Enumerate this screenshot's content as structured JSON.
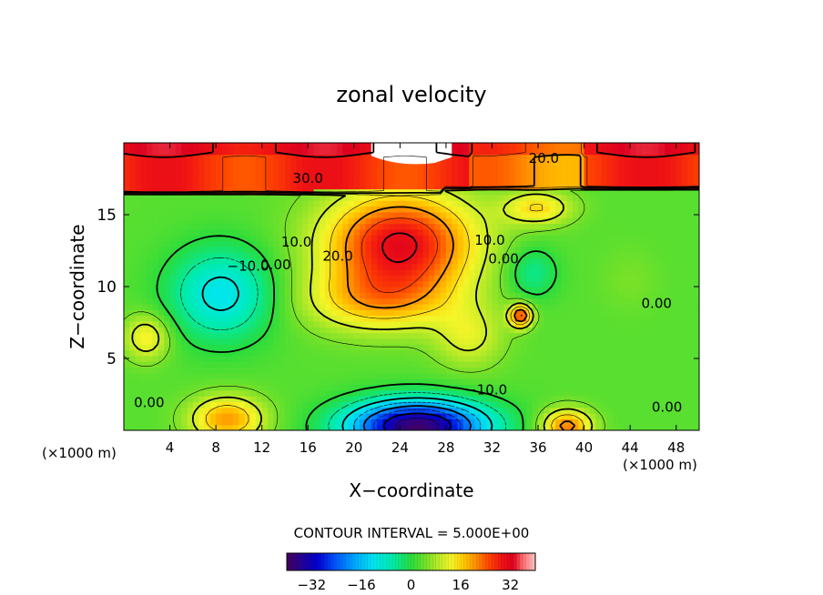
{
  "chart_data": {
    "type": "heatmap",
    "title": "zonal velocity",
    "xlabel": "X−coordinate",
    "ylabel": "Z−coordinate",
    "x_unit_left": "(×1000 m)",
    "x_unit_right": "(×1000 m)",
    "xlim": [
      0,
      50
    ],
    "ylim": [
      0,
      20
    ],
    "x_ticks": [
      4,
      8,
      12,
      16,
      20,
      24,
      28,
      32,
      36,
      40,
      44,
      48
    ],
    "y_ticks": [
      5,
      10,
      15
    ],
    "contour_interval_label": "CONTOUR INTERVAL = 5.000E+00",
    "colorbar": {
      "range": [
        -40,
        40
      ],
      "ticks": [
        -32,
        -16,
        0,
        16,
        32
      ],
      "tick_labels": [
        "−32",
        "−16",
        "0",
        "16",
        "32"
      ]
    },
    "contour_labels": [
      {
        "text": "30.0",
        "x": 16.0,
        "y": 17.2
      },
      {
        "text": "20.0",
        "x": 36.5,
        "y": 18.6
      },
      {
        "text": "20.0",
        "x": 18.6,
        "y": 11.8
      },
      {
        "text": "10.0",
        "x": 15.0,
        "y": 12.8
      },
      {
        "text": "0.00",
        "x": 13.2,
        "y": 11.2
      },
      {
        "text": "−10.0",
        "x": 10.8,
        "y": 11.1
      },
      {
        "text": "10.0",
        "x": 31.8,
        "y": 12.9
      },
      {
        "text": "0.00",
        "x": 33.0,
        "y": 11.6
      },
      {
        "text": "0.00",
        "x": 46.3,
        "y": 8.5
      },
      {
        "text": "0.00",
        "x": 2.2,
        "y": 1.6
      },
      {
        "text": "−10.0",
        "x": 31.5,
        "y": 2.5
      },
      {
        "text": "0.00",
        "x": 47.2,
        "y": 1.3
      }
    ],
    "features": [
      {
        "name": "upper jet core",
        "x": 24,
        "z": 15.5,
        "u": 30
      },
      {
        "name": "jet core",
        "x": 24.5,
        "z": 12.0,
        "u": 32
      },
      {
        "name": "lower jet tongue",
        "x": 22,
        "z": 8.5,
        "u": 20
      },
      {
        "name": "small maximum",
        "x": 34.5,
        "z": 8.0,
        "u": 32
      },
      {
        "name": "westerly layer",
        "x": 25,
        "z": 18.2,
        "u": 28
      },
      {
        "name": "ridge",
        "x": 36,
        "z": 16.0,
        "u": 18
      },
      {
        "name": "negative cell",
        "x": 8.5,
        "z": 9.5,
        "u": -12
      },
      {
        "name": "negative cell",
        "x": 35.5,
        "z": 11.0,
        "u": -5
      },
      {
        "name": "negative core near ground",
        "x": 25.5,
        "z": 0.6,
        "u": -38
      },
      {
        "name": "positive cell",
        "x": 2,
        "z": 6.5,
        "u": 14
      },
      {
        "name": "positive cell near ground",
        "x": 9,
        "z": 0.8,
        "u": 20
      },
      {
        "name": "positive cell near ground",
        "x": 38.5,
        "z": 0.4,
        "u": 22
      },
      {
        "name": "weak positive cell",
        "x": 44,
        "z": 10.5,
        "u": 4
      }
    ]
  }
}
